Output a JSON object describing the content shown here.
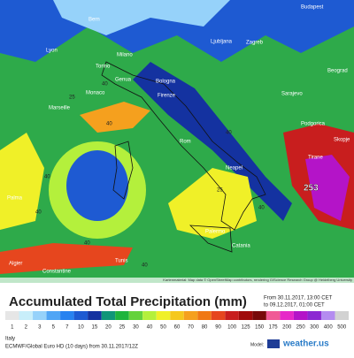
{
  "map": {
    "cities": [
      "Bern",
      "Budapest",
      "Milano",
      "Ljubljana",
      "Zagreb",
      "Lyon",
      "Torino",
      "Genua",
      "Bologna",
      "Monaco",
      "Firenze",
      "Marseille",
      "Beograd",
      "Sarajevo",
      "Rom",
      "Podgorica",
      "Skopje",
      "Neapel",
      "Tirane",
      "Palma",
      "Palermo",
      "Catania",
      "Algier",
      "Tunis",
      "Constantine"
    ],
    "contour_labels": [
      40,
      25,
      40,
      40,
      40,
      40,
      25,
      40,
      40,
      40
    ],
    "max_value": 253,
    "attribution": "Kartenmaterial: Map data © OpenStreetMap contributors, rendering GIScience Research Group @ Heidelberg University"
  },
  "legend": {
    "title": "Accumulated Total Precipitation (mm)",
    "from": "From 30.11.2017, 13:00 CET",
    "to": "to 09.12.2017, 01:00 CET",
    "levels": [
      1,
      2,
      3,
      5,
      7,
      10,
      15,
      20,
      25,
      30,
      40,
      50,
      60,
      70,
      80,
      90,
      100,
      125,
      150,
      175,
      200,
      250,
      300,
      400,
      500
    ],
    "colors": [
      "#e6e6e6",
      "#c8eefa",
      "#96d2fa",
      "#50a5f5",
      "#2882f0",
      "#1e5ad2",
      "#1432a0",
      "#109678",
      "#1eb43c",
      "#64d23c",
      "#b4f03c",
      "#f0f028",
      "#f5c81e",
      "#f5a01e",
      "#f07814",
      "#e6461e",
      "#c81e1e",
      "#a00a0a",
      "#780a0a",
      "#f05a96",
      "#e628c8",
      "#b414c8",
      "#8c28d2",
      "#b48cf0",
      "#d2d2d2"
    ]
  },
  "footer": {
    "region": "Italy",
    "model_run": "ECMWF/Global Euro HD (10 days) from 30.11.2017/12Z",
    "model_label": "Model:",
    "brand": "weather.us"
  }
}
